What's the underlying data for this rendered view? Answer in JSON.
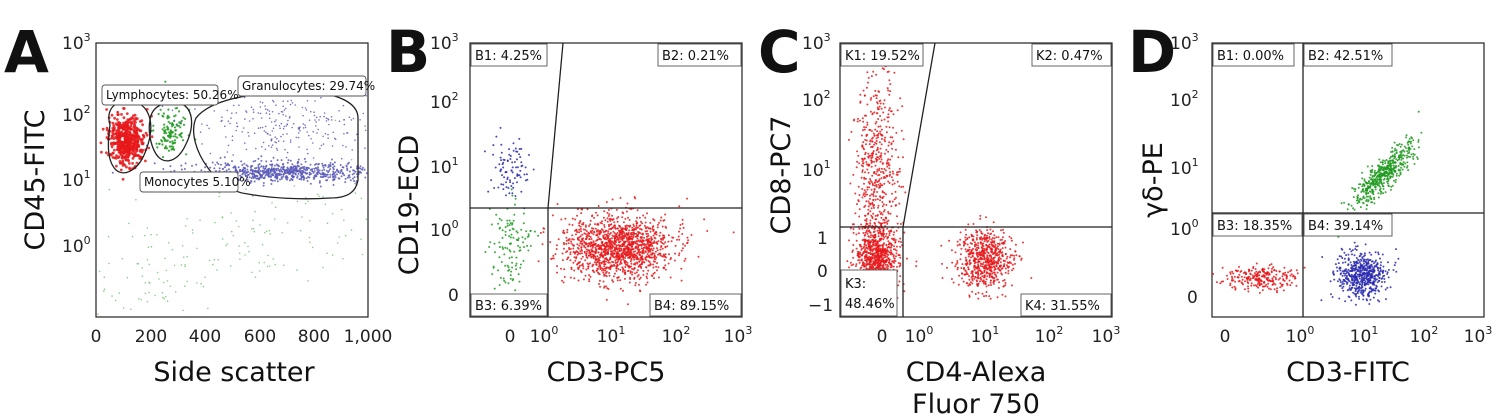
{
  "colors": {
    "red": "#e8191b",
    "green": "#1e9a1e",
    "lightgreen": "#7cc27c",
    "blue": "#2a2ab0",
    "purple": "#5a5ab8"
  },
  "chart_data": [
    {
      "panel": "A",
      "type": "scatter",
      "xlabel": "Side scatter",
      "ylabel": "CD45-FITC",
      "xlim": [
        0,
        1000
      ],
      "x_scale": "linear",
      "y_scale": "log",
      "x_ticks": [
        "0",
        "200",
        "400",
        "600",
        "800",
        "1,000"
      ],
      "y_ticks": [
        "10",
        "10",
        "10"
      ],
      "y_tick_exponents": [
        "0",
        "1",
        "2"
      ],
      "y_top_label": "10",
      "y_top_exponent": "3",
      "gates": [
        {
          "name": "Lymphocytes",
          "label": "Lymphocytes: 50.26%",
          "percent": 50.26,
          "color": "red"
        },
        {
          "name": "Monocytes",
          "label": "Monocytes  5.10%",
          "percent": 5.1,
          "color": "green"
        },
        {
          "name": "Granulocytes",
          "label": "Granulocytes: 29.74%",
          "percent": 29.74,
          "color": "blue"
        }
      ],
      "populations": [
        {
          "color": "red",
          "center": [
            90,
            40
          ],
          "approx_count": 500
        },
        {
          "color": "green",
          "center": [
            250,
            60
          ],
          "approx_count": 120
        },
        {
          "color": "purple",
          "center": [
            650,
            14
          ],
          "approx_count": 700
        },
        {
          "color": "purple",
          "center": [
            650,
            50
          ],
          "approx_count": 250
        },
        {
          "color": "lightgreen",
          "center": [
            300,
            0.7
          ],
          "approx_count": 250
        }
      ]
    },
    {
      "panel": "B",
      "type": "scatter",
      "xlabel": "CD3-PC5",
      "ylabel": "CD19-ECD",
      "x_scale": "biexponential",
      "y_scale": "biexponential",
      "x_ticks": [
        "0",
        "10",
        "10",
        "10",
        "10"
      ],
      "x_tick_exponents": [
        "",
        "0",
        "1",
        "2",
        "3"
      ],
      "y_ticks": [
        "0",
        "10",
        "10",
        "10",
        "10"
      ],
      "y_tick_exponents": [
        "",
        "0",
        "1",
        "2",
        "3"
      ],
      "quadrants": [
        {
          "label": "B1: 4.25%",
          "percent": 4.25
        },
        {
          "label": "B2: 0.21%",
          "percent": 0.21
        },
        {
          "label": "B3: 6.39%",
          "percent": 6.39
        },
        {
          "label": "B4: 89.15%",
          "percent": 89.15
        }
      ],
      "populations": [
        {
          "color": "blue",
          "center": [
            0,
            10
          ],
          "approx_count": 90
        },
        {
          "color": "green",
          "center": [
            0,
            0.6
          ],
          "approx_count": 120
        },
        {
          "color": "red",
          "center": [
            20,
            0.6
          ],
          "approx_count": 1400
        }
      ]
    },
    {
      "panel": "C",
      "type": "scatter",
      "xlabel_line1": "CD4-Alexa",
      "xlabel_line2": "Fluor 750",
      "ylabel": "CD8-PC7",
      "x_scale": "biexponential",
      "y_scale": "biexponential",
      "x_ticks": [
        "0",
        "10",
        "10",
        "10",
        "10"
      ],
      "x_tick_exponents": [
        "",
        "0",
        "1",
        "2",
        "3"
      ],
      "y_ticks": [
        "−1",
        "0",
        "1",
        "10",
        "10",
        "10"
      ],
      "y_tick_exponents": [
        "",
        "",
        "",
        "1",
        "2",
        "3"
      ],
      "quadrants": [
        {
          "label": "K1: 19.52%",
          "percent": 19.52
        },
        {
          "label": "K2: 0.47%",
          "percent": 0.47
        },
        {
          "label_line1": "K3:",
          "label_line2": "48.46%",
          "percent": 48.46
        },
        {
          "label": "K4: 31.55%",
          "percent": 31.55
        }
      ],
      "populations": [
        {
          "color": "red",
          "center": [
            0,
            40
          ],
          "approx_count": 500
        },
        {
          "color": "red",
          "center": [
            0,
            0.2
          ],
          "approx_count": 900
        },
        {
          "color": "red",
          "center": [
            10,
            0.2
          ],
          "approx_count": 650
        }
      ]
    },
    {
      "panel": "D",
      "type": "scatter",
      "xlabel": "CD3-FITC",
      "ylabel": "γδ-PE",
      "x_scale": "biexponential",
      "y_scale": "biexponential",
      "x_ticks": [
        "0",
        "10",
        "10",
        "10",
        "10"
      ],
      "x_tick_exponents": [
        "",
        "0",
        "1",
        "2",
        "3"
      ],
      "y_ticks": [
        "0",
        "10",
        "10",
        "10",
        "10"
      ],
      "y_tick_exponents": [
        "",
        "0",
        "1",
        "2",
        "3"
      ],
      "quadrants": [
        {
          "label": "B1: 0.00%",
          "percent": 0.0
        },
        {
          "label": "B2: 42.51%",
          "percent": 42.51
        },
        {
          "label": "B3: 18.35%",
          "percent": 18.35
        },
        {
          "label": "B4: 39.14%",
          "percent": 39.14
        }
      ],
      "populations": [
        {
          "color": "green",
          "center": [
            25,
            10
          ],
          "approx_count": 500
        },
        {
          "color": "red",
          "center": [
            0.3,
            0.2
          ],
          "approx_count": 250
        },
        {
          "color": "blue",
          "center": [
            8,
            0.2
          ],
          "approx_count": 550
        }
      ]
    }
  ]
}
